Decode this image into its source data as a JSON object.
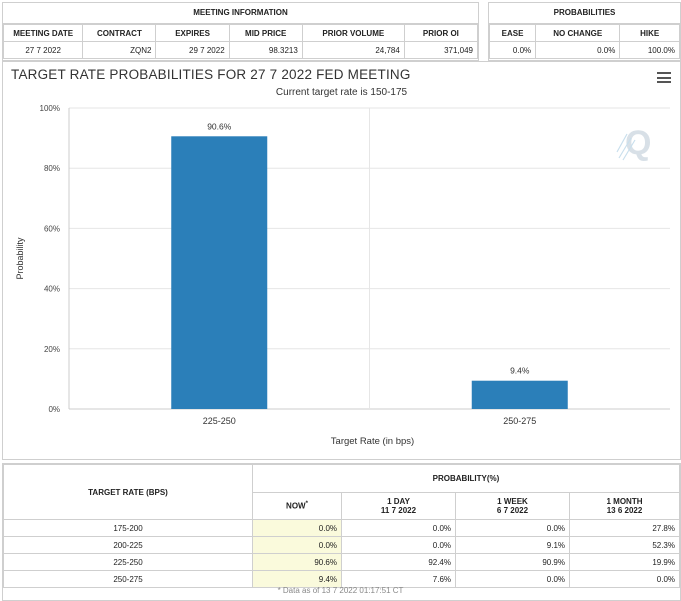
{
  "meeting_info": {
    "group_title": "MEETING INFORMATION",
    "headers": [
      "MEETING DATE",
      "CONTRACT",
      "EXPIRES",
      "MID PRICE",
      "PRIOR VOLUME",
      "PRIOR OI"
    ],
    "values": [
      "27 7 2022",
      "ZQN2",
      "29 7 2022",
      "98.3213",
      "24,784",
      "371,049"
    ]
  },
  "probabilities_top": {
    "group_title": "PROBABILITIES",
    "headers": [
      "EASE",
      "NO CHANGE",
      "HIKE"
    ],
    "values": [
      "0.0%",
      "0.0%",
      "100.0%"
    ]
  },
  "chart_panel": {
    "title": "TARGET RATE PROBABILITIES FOR 27 7 2022 FED MEETING",
    "subtitle": "Current target rate is 150-175",
    "menu_icon": "hamburger-menu-icon",
    "watermark_icon": "q-logo-icon"
  },
  "chart_data": {
    "type": "bar",
    "title": "TARGET RATE PROBABILITIES FOR 27 7 2022 FED MEETING",
    "subtitle": "Current target rate is 150-175",
    "categories": [
      "225-250",
      "250-275"
    ],
    "values": [
      90.6,
      9.4
    ],
    "data_labels": [
      "90.6%",
      "9.4%"
    ],
    "xlabel": "Target Rate (in bps)",
    "ylabel": "Probability",
    "ylim": [
      0,
      100
    ],
    "yticks": [
      "0%",
      "20%",
      "40%",
      "60%",
      "80%",
      "100%"
    ],
    "grid": true,
    "bar_color": "#2b7fb9"
  },
  "bottom_table": {
    "row_header": "TARGET RATE (BPS)",
    "group_title": "PROBABILITY(%)",
    "columns": [
      {
        "label": "NOW",
        "sub": "",
        "marker": "*"
      },
      {
        "label": "1 DAY",
        "sub": "11 7 2022"
      },
      {
        "label": "1 WEEK",
        "sub": "6 7 2022"
      },
      {
        "label": "1 MONTH",
        "sub": "13 6 2022"
      }
    ],
    "rows": [
      {
        "rate": "175-200",
        "values": [
          "0.0%",
          "0.0%",
          "0.0%",
          "27.8%"
        ]
      },
      {
        "rate": "200-225",
        "values": [
          "0.0%",
          "0.0%",
          "9.1%",
          "52.3%"
        ]
      },
      {
        "rate": "225-250",
        "values": [
          "90.6%",
          "92.4%",
          "90.9%",
          "19.9%"
        ]
      },
      {
        "rate": "250-275",
        "values": [
          "9.4%",
          "7.6%",
          "0.0%",
          "0.0%"
        ]
      }
    ],
    "footnote": "* Data as of 13 7 2022 01:17:51 CT"
  }
}
